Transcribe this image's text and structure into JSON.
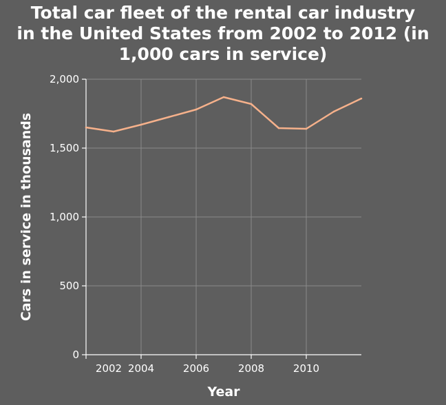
{
  "chart_data": {
    "type": "line",
    "title_lines": [
      "Total car fleet of the rental car industry",
      "in the United States from 2002 to 2012 (in",
      "1,000 cars in service)"
    ],
    "xlabel": "Year",
    "ylabel": "Cars in service in thousands",
    "xlim": [
      2002,
      2012
    ],
    "ylim": [
      0,
      2000
    ],
    "x_ticks": [
      2002,
      2004,
      2006,
      2008,
      2010
    ],
    "y_ticks": [
      0,
      500,
      1000,
      1500,
      2000
    ],
    "x_tick_labels": [
      "2002",
      "2004",
      "2006",
      "2008",
      "2010"
    ],
    "y_tick_labels": [
      "0",
      "500",
      "1,000",
      "1,500",
      "2,000"
    ],
    "grid": true,
    "series": [
      {
        "x": [
          2002,
          2003,
          2004,
          2005,
          2006,
          2007,
          2008,
          2009,
          2010,
          2011,
          2012
        ],
        "values": [
          1650,
          1620,
          1670,
          1725,
          1780,
          1870,
          1820,
          1645,
          1640,
          1765,
          1860
        ]
      }
    ],
    "colors": {
      "background": "#5e5e5e",
      "grid": "#8a8a8a",
      "axis": "#ffffff",
      "line": "#f6b18b",
      "text": "#ffffff"
    }
  }
}
